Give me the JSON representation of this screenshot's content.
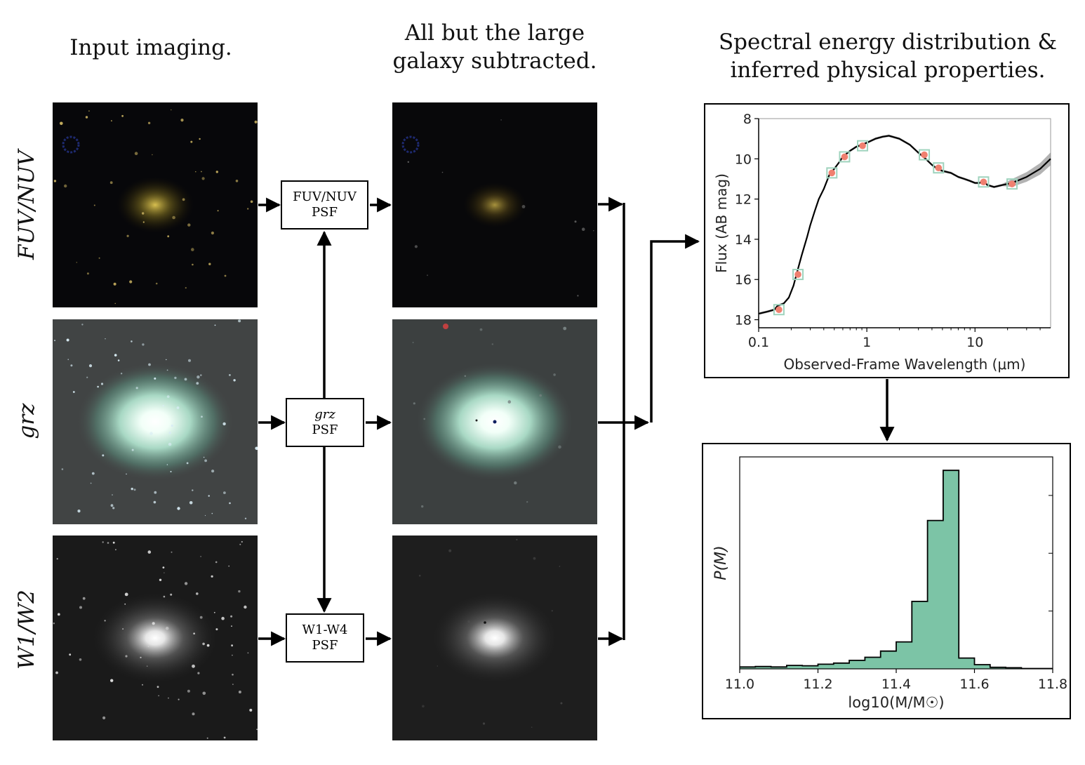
{
  "headings": {
    "input": "Input imaging.",
    "subtracted_line1": "All but the large",
    "subtracted_line2": "galaxy subtracted.",
    "sed_line1": "Spectral energy distribution &",
    "sed_line2": "inferred physical properties."
  },
  "row_labels": {
    "fuv": "FUV/NUV",
    "grz": "grz",
    "wise": "W1/W2"
  },
  "psf_boxes": {
    "fuv": {
      "line1": "FUV/NUV",
      "line2": "PSF"
    },
    "grz": {
      "line1": "grz",
      "line2": "PSF"
    },
    "wise": {
      "line1": "W1-W4",
      "line2": "PSF"
    }
  },
  "colors": {
    "accent": "#7cc4a6",
    "point": "#f08070",
    "marker": "#9fd3bd",
    "line": "#000000"
  },
  "chart_data": [
    {
      "type": "line",
      "xlabel": "Observed-Frame Wavelength (μm)",
      "ylabel": "Flux (AB mag)",
      "xscale": "log",
      "xlim": [
        0.1,
        50
      ],
      "ylim": [
        18.4,
        8
      ],
      "y_inverted": true,
      "xticks": [
        0.1,
        1,
        10
      ],
      "xtick_labels": [
        "0.1",
        "1",
        "10"
      ],
      "yticks": [
        8,
        10,
        12,
        14,
        16,
        18
      ],
      "ytick_labels": [
        "8",
        "10",
        "12",
        "14",
        "16",
        "18"
      ],
      "model_sed": {
        "x": [
          0.1,
          0.12,
          0.14,
          0.15,
          0.17,
          0.19,
          0.21,
          0.23,
          0.25,
          0.28,
          0.3,
          0.33,
          0.36,
          0.4,
          0.45,
          0.5,
          0.55,
          0.6,
          0.7,
          0.8,
          0.9,
          1.0,
          1.2,
          1.4,
          1.6,
          2.0,
          2.5,
          3.0,
          3.5,
          4.0,
          4.5,
          5.0,
          6.0,
          7.0,
          8.0,
          9.0,
          10.0,
          11.0,
          12.0,
          13.0,
          15.0,
          18.0,
          22.0,
          30.0,
          40.0,
          50.0
        ],
        "y": [
          17.7,
          17.6,
          17.5,
          17.3,
          17.2,
          16.9,
          16.3,
          15.5,
          14.8,
          13.9,
          13.3,
          12.6,
          12.0,
          11.5,
          10.8,
          10.5,
          10.2,
          9.9,
          9.6,
          9.4,
          9.3,
          9.2,
          9.0,
          8.9,
          8.85,
          9.0,
          9.3,
          9.7,
          10.0,
          10.3,
          10.5,
          10.6,
          10.7,
          10.9,
          11.0,
          11.1,
          11.2,
          11.2,
          11.1,
          11.3,
          11.4,
          11.3,
          11.2,
          10.9,
          10.5,
          10.0
        ]
      },
      "photometry": {
        "x": [
          0.154,
          0.231,
          0.475,
          0.623,
          0.913,
          3.4,
          4.6,
          12.0,
          22.0
        ],
        "y": [
          17.5,
          15.75,
          10.7,
          9.9,
          9.35,
          9.8,
          10.45,
          11.15,
          11.25
        ]
      }
    },
    {
      "type": "bar",
      "xlabel": "log10(M/M☉)",
      "ylabel": "P(M)",
      "xlim": [
        11.0,
        11.8
      ],
      "xticks": [
        11.0,
        11.2,
        11.4,
        11.6,
        11.8
      ],
      "xtick_labels": [
        "11.0",
        "11.2",
        "11.4",
        "11.6",
        "11.8"
      ],
      "ylim": [
        0,
        0.55
      ],
      "bin_edges": [
        11.0,
        11.04,
        11.08,
        11.12,
        11.16,
        11.2,
        11.24,
        11.28,
        11.32,
        11.36,
        11.4,
        11.44,
        11.48,
        11.52,
        11.56,
        11.6,
        11.64,
        11.68,
        11.72,
        11.76,
        11.8
      ],
      "values": [
        0.005,
        0.006,
        0.005,
        0.009,
        0.008,
        0.012,
        0.015,
        0.022,
        0.03,
        0.046,
        0.07,
        0.175,
        0.385,
        0.515,
        0.028,
        0.011,
        0.004,
        0.003,
        0.001,
        0.001
      ]
    }
  ]
}
